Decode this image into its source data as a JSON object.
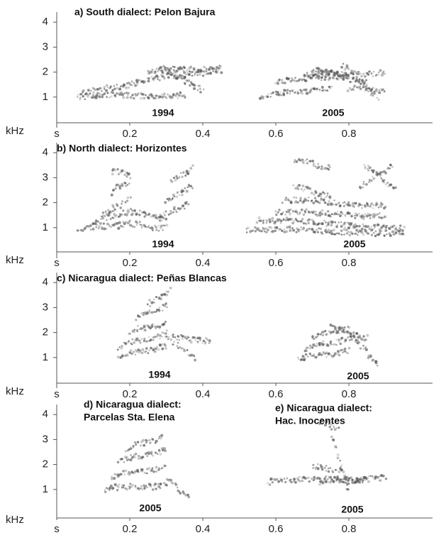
{
  "y_axis": {
    "label": "kHz",
    "ticks": [
      1,
      2,
      3,
      4
    ]
  },
  "x_axis": {
    "origin_label": "s",
    "ticks": [
      0.2,
      0.4,
      0.6,
      0.8
    ]
  },
  "rows": [
    {
      "captions": [
        {
          "lines": [
            "a) South dialect: Pelon Bajura"
          ]
        }
      ],
      "years": [
        "1994",
        "2005"
      ]
    },
    {
      "captions": [
        {
          "lines": [
            "b) North dialect: Horizontes"
          ]
        }
      ],
      "years": [
        "1994",
        "2005"
      ]
    },
    {
      "captions": [
        {
          "lines": [
            "c) Nicaragua dialect: Peñas Blancas"
          ]
        }
      ],
      "years": [
        "1994",
        "2005"
      ]
    },
    {
      "captions": [
        {
          "lines": [
            "d) Nicaragua dialect:",
            "Parcelas Sta. Elena"
          ]
        },
        {
          "lines": [
            "e) Nicaragua dialect:",
            "Hac. Inocentes"
          ]
        }
      ],
      "years": [
        "2005",
        "2005"
      ]
    }
  ]
}
